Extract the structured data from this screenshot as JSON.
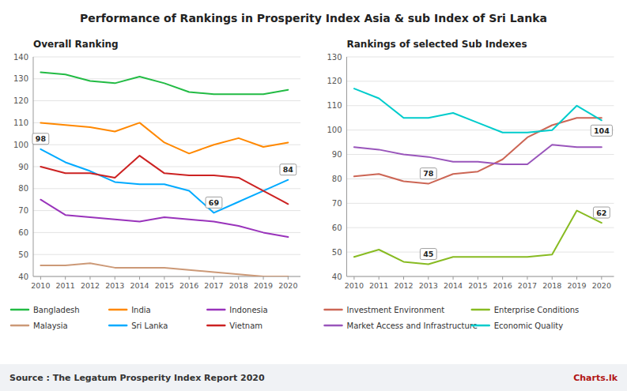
{
  "title": "Performance of Rankings in Prosperity Index Asia & sub Index of Sri Lanka",
  "source": "Source : The Legatum Prosperity Index Report 2020",
  "credit": "Charts.lk",
  "chart_data": [
    {
      "type": "line",
      "title": "Overall Ranking",
      "x": [
        2010,
        2011,
        2012,
        2013,
        2014,
        2015,
        2016,
        2017,
        2018,
        2019,
        2020
      ],
      "series": [
        {
          "name": "Bangladesh",
          "color": "#22bb44",
          "values": [
            133,
            132,
            129,
            128,
            131,
            128,
            124,
            123,
            123,
            123,
            125
          ]
        },
        {
          "name": "India",
          "color": "#ff8800",
          "values": [
            110,
            109,
            108,
            106,
            110,
            101,
            96,
            100,
            103,
            99,
            101
          ]
        },
        {
          "name": "Indonesia",
          "color": "#9933bb",
          "values": [
            75,
            68,
            67,
            66,
            65,
            67,
            66,
            65,
            63,
            60,
            58
          ]
        },
        {
          "name": "Malaysia",
          "color": "#cc9977",
          "values": [
            45,
            45,
            46,
            44,
            44,
            44,
            43,
            42,
            41,
            40,
            40
          ]
        },
        {
          "name": "Sri Lanka",
          "color": "#00aaff",
          "values": [
            98,
            92,
            88,
            83,
            82,
            82,
            79,
            69,
            74,
            79,
            84
          ]
        },
        {
          "name": "Vietnam",
          "color": "#cc2222",
          "values": [
            90,
            87,
            87,
            85,
            95,
            87,
            86,
            86,
            85,
            79,
            73
          ]
        }
      ],
      "xlim": [
        2009.7,
        2020.5
      ],
      "xticks": [
        2010,
        2011,
        2012,
        2013,
        2014,
        2015,
        2016,
        2017,
        2018,
        2019,
        2020
      ],
      "ylim": [
        40,
        140
      ],
      "yticks": [
        40,
        50,
        60,
        70,
        80,
        90,
        100,
        110,
        120,
        130,
        140
      ],
      "grid": true,
      "legend": "bottom",
      "annotations": [
        {
          "x": 2010,
          "y": 98,
          "text": "98"
        },
        {
          "x": 2017,
          "y": 69,
          "text": "69"
        },
        {
          "x": 2020,
          "y": 84,
          "text": "84"
        }
      ]
    },
    {
      "type": "line",
      "title": "Rankings of selected Sub Indexes",
      "x": [
        2010,
        2011,
        2012,
        2013,
        2014,
        2015,
        2016,
        2017,
        2018,
        2019,
        2020
      ],
      "series": [
        {
          "name": "Investment Environment",
          "color": "#cc6655",
          "values": [
            81,
            82,
            79,
            78,
            82,
            83,
            88,
            97,
            102,
            105,
            105
          ]
        },
        {
          "name": "Enterprise Conditions",
          "color": "#88bb22",
          "values": [
            48,
            51,
            46,
            45,
            48,
            48,
            48,
            48,
            49,
            67,
            62
          ]
        },
        {
          "name": "Market Access and Infrastructure",
          "color": "#9955bb",
          "values": [
            93,
            92,
            90,
            89,
            87,
            87,
            86,
            86,
            94,
            93,
            93
          ]
        },
        {
          "name": "Economic Quality",
          "color": "#00cccc",
          "values": [
            117,
            113,
            105,
            105,
            107,
            103,
            99,
            99,
            100,
            110,
            104
          ]
        }
      ],
      "xlim": [
        2009.7,
        2020.5
      ],
      "xticks": [
        2010,
        2011,
        2012,
        2013,
        2014,
        2015,
        2016,
        2017,
        2018,
        2019,
        2020
      ],
      "ylim": [
        40,
        130
      ],
      "yticks": [
        40,
        50,
        60,
        70,
        80,
        90,
        100,
        110,
        120,
        130
      ],
      "grid": true,
      "legend": "bottom",
      "annotations": [
        {
          "x": 2013,
          "y": 45,
          "text": "45"
        },
        {
          "x": 2013,
          "y": 78,
          "text": "78"
        },
        {
          "x": 2020,
          "y": 62,
          "text": "62"
        },
        {
          "x": 2020,
          "y": 104,
          "text": "104"
        }
      ]
    }
  ]
}
